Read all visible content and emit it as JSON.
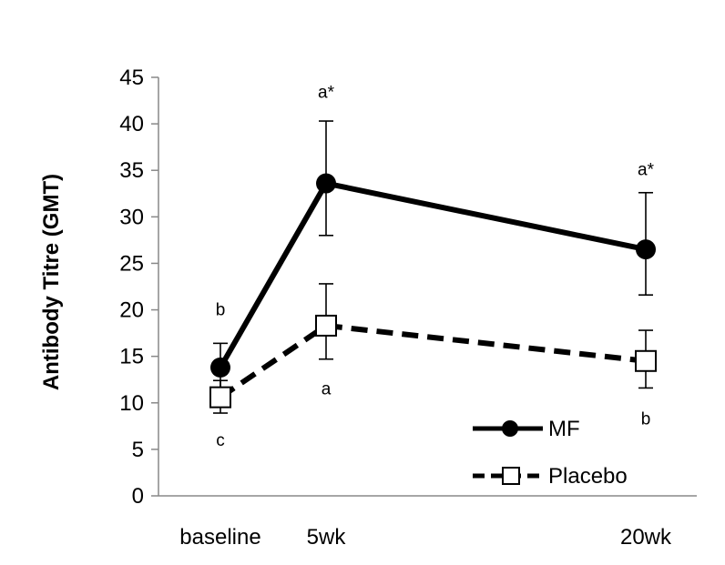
{
  "chart_data": {
    "type": "line",
    "title": "",
    "xlabel": "",
    "ylabel": "Antibody Titre (GMT)",
    "ylim": [
      0,
      45
    ],
    "yticks": [
      "0",
      "5",
      "10",
      "15",
      "20",
      "25",
      "30",
      "35",
      "40",
      "45"
    ],
    "categories": [
      "baseline",
      "5wk",
      "20wk"
    ],
    "category_positions": [
      0,
      1,
      4
    ],
    "grid": false,
    "legend_position": "bottom-right",
    "series": [
      {
        "name": "MF",
        "values": [
          13.8,
          33.6,
          26.5
        ],
        "error_low": [
          11.3,
          28.0,
          21.6
        ],
        "error_high": [
          16.4,
          40.3,
          32.6
        ],
        "line_style": "solid",
        "marker": "filled-circle",
        "color": "#000000"
      },
      {
        "name": "Placebo",
        "values": [
          10.6,
          18.3,
          14.5
        ],
        "error_low": [
          8.9,
          14.7,
          11.6
        ],
        "error_high": [
          12.4,
          22.8,
          17.8
        ],
        "line_style": "dashed",
        "marker": "open-square",
        "color": "#000000"
      }
    ],
    "annotations": [
      {
        "text": "b",
        "category": "baseline",
        "y": 19.4
      },
      {
        "text": "c",
        "category": "baseline",
        "y": 5.4
      },
      {
        "text": "a*",
        "category": "5wk",
        "y": 42.8
      },
      {
        "text": "a",
        "category": "5wk",
        "y": 10.9
      },
      {
        "text": "a*",
        "category": "20wk",
        "y": 34.5
      },
      {
        "text": "b",
        "category": "20wk",
        "y": 7.7
      }
    ]
  }
}
